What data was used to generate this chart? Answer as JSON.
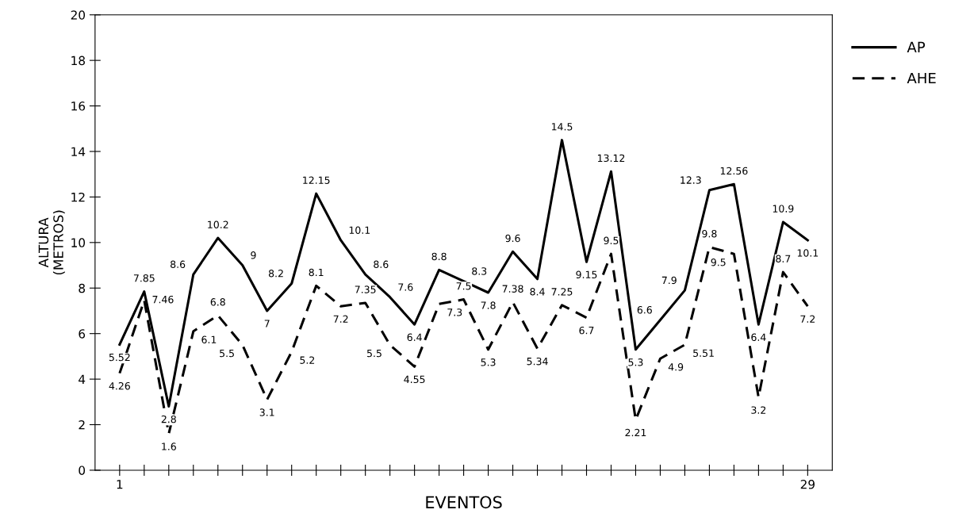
{
  "chart_data": {
    "type": "line",
    "xlabel": "EVENTOS",
    "ylabel": "ALTURA\n(METROS)",
    "x": [
      1,
      2,
      3,
      4,
      5,
      6,
      7,
      8,
      9,
      10,
      11,
      12,
      13,
      14,
      15,
      16,
      17,
      18,
      19,
      20,
      21,
      22,
      23,
      24,
      25,
      26,
      27,
      28,
      29
    ],
    "xlim": [
      0,
      30
    ],
    "xticks": [
      1,
      {
        "value": 2,
        "label": null
      },
      {
        "value": 3,
        "label": null
      },
      {
        "value": 4,
        "label": null
      },
      {
        "value": 5,
        "label": null
      },
      {
        "value": 6,
        "label": null
      },
      {
        "value": 7,
        "label": null
      },
      {
        "value": 8,
        "label": null
      },
      {
        "value": 9,
        "label": null
      },
      {
        "value": 10,
        "label": null
      },
      {
        "value": 11,
        "label": null
      },
      {
        "value": 12,
        "label": null
      },
      {
        "value": 13,
        "label": null
      },
      {
        "value": 14,
        "label": null
      },
      {
        "value": 15,
        "label": null
      },
      {
        "value": 16,
        "label": null
      },
      {
        "value": 17,
        "label": null
      },
      {
        "value": 18,
        "label": null
      },
      {
        "value": 19,
        "label": null
      },
      {
        "value": 20,
        "label": null
      },
      {
        "value": 21,
        "label": null
      },
      {
        "value": 22,
        "label": null
      },
      {
        "value": 23,
        "label": null
      },
      {
        "value": 24,
        "label": null
      },
      {
        "value": 25,
        "label": null
      },
      {
        "value": 26,
        "label": null
      },
      {
        "value": 27,
        "label": null
      },
      {
        "value": 28,
        "label": null
      },
      29
    ],
    "ylim": [
      0,
      20
    ],
    "yticks": [
      0,
      2,
      4,
      6,
      8,
      10,
      12,
      14,
      16,
      18,
      20
    ],
    "series": [
      {
        "name": "AP",
        "color": "#000000",
        "line_style": "solid",
        "values": [
          5.52,
          7.85,
          2.8,
          8.6,
          10.2,
          9,
          7,
          8.2,
          12.15,
          10.1,
          8.6,
          7.6,
          6.4,
          8.8,
          8.3,
          7.8,
          9.6,
          8.4,
          14.5,
          9.15,
          13.12,
          5.3,
          6.6,
          7.9,
          12.3,
          12.56,
          6.4,
          10.9,
          10.1
        ]
      },
      {
        "name": "AHE",
        "color": "#000000",
        "line_style": "dashed",
        "values": [
          4.26,
          7.46,
          1.6,
          6.1,
          6.8,
          5.5,
          3.1,
          5.2,
          8.1,
          7.2,
          7.35,
          5.5,
          4.55,
          7.3,
          7.5,
          5.3,
          7.38,
          5.34,
          7.25,
          6.7,
          9.5,
          2.21,
          4.9,
          5.51,
          9.8,
          9.5,
          3.2,
          8.7,
          7.2
        ]
      }
    ],
    "data_labels": true,
    "legend": "right",
    "grid": false,
    "marker": "none"
  }
}
